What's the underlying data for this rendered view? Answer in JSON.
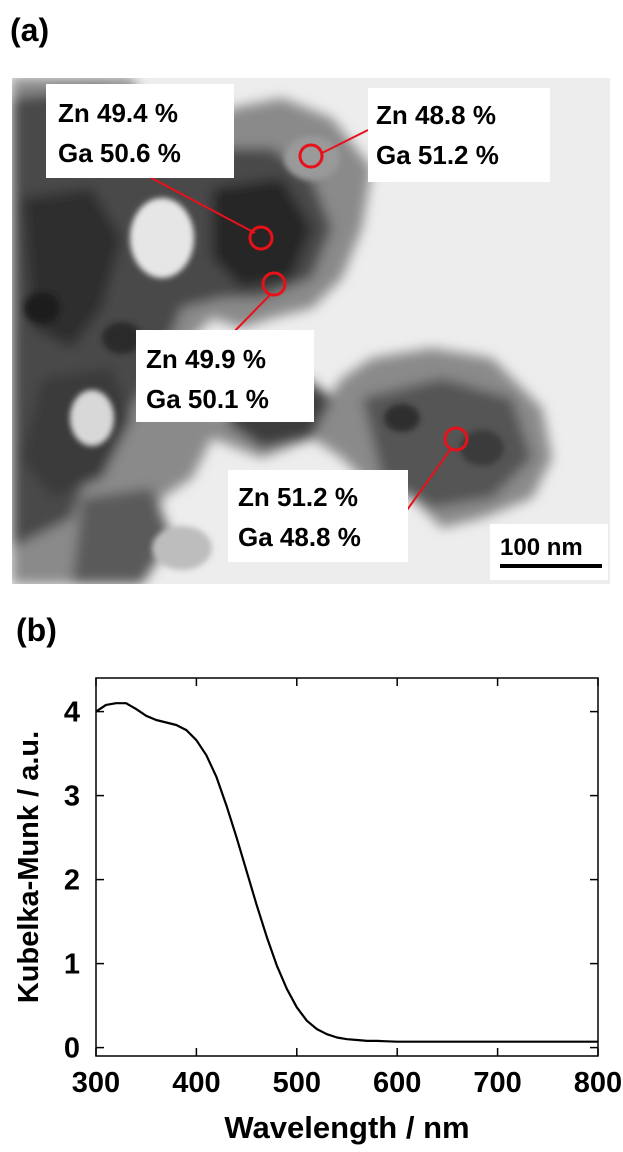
{
  "panel_a": {
    "label": "(a)",
    "scale_bar": "100 nm",
    "annotations": [
      {
        "line1": "Zn 49.4 %",
        "line2": "Ga 50.6 %"
      },
      {
        "line1": "Zn 48.8 %",
        "line2": "Ga 51.2 %"
      },
      {
        "line1": "Zn 49.9 %",
        "line2": "Ga 50.1 %"
      },
      {
        "line1": "Zn 51.2 %",
        "line2": "Ga 48.8 %"
      }
    ],
    "colors": {
      "marker": "#e8111a",
      "background": "#eeeeee",
      "particle": "#3a3a3a"
    }
  },
  "panel_b": {
    "label": "(b)"
  },
  "chart_data": {
    "type": "line",
    "xlabel": "Wavelength / nm",
    "ylabel": "Kubelka-Munk / a.u.",
    "xlim": [
      300,
      800
    ],
    "ylim": [
      -0.1,
      4.4
    ],
    "xticks": [
      300,
      400,
      500,
      600,
      700,
      800
    ],
    "yticks": [
      0,
      1,
      2,
      3,
      4
    ],
    "grid": false,
    "series": [
      {
        "x": [
          300,
          310,
          320,
          330,
          340,
          350,
          360,
          370,
          380,
          390,
          400,
          410,
          420,
          430,
          440,
          450,
          460,
          470,
          480,
          490,
          500,
          510,
          520,
          530,
          540,
          550,
          560,
          570,
          580,
          590,
          600,
          620,
          650,
          700,
          750,
          800
        ],
        "y": [
          4.0,
          4.08,
          4.1,
          4.1,
          4.03,
          3.95,
          3.9,
          3.87,
          3.84,
          3.78,
          3.66,
          3.48,
          3.22,
          2.88,
          2.5,
          2.1,
          1.7,
          1.32,
          0.98,
          0.7,
          0.48,
          0.32,
          0.22,
          0.16,
          0.12,
          0.1,
          0.09,
          0.08,
          0.08,
          0.075,
          0.07,
          0.07,
          0.07,
          0.07,
          0.07,
          0.07
        ],
        "color": "#000000"
      }
    ]
  }
}
